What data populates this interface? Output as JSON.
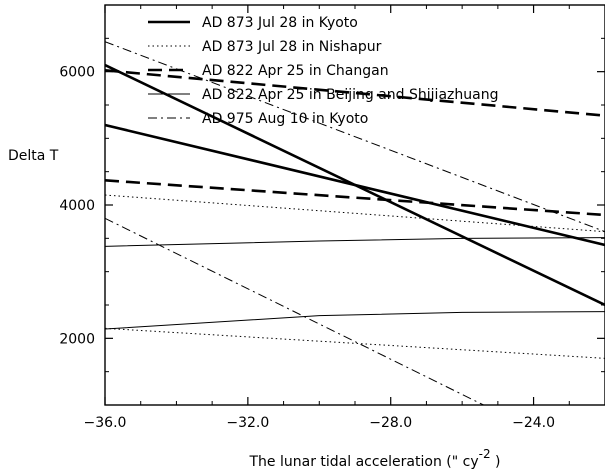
{
  "chart_data": {
    "type": "line",
    "title": "",
    "xlabel": "The lunar tidal acceleration (\" cy",
    "xlabel_superscript": "-2",
    "xlabel_suffix": " )",
    "ylabel": "Delta T",
    "xlim": [
      -36.0,
      -22.0
    ],
    "ylim": [
      1000,
      7000
    ],
    "x_ticks": [
      -36.0,
      -32.0,
      -28.0,
      -24.0
    ],
    "x_tick_labels": [
      "−36.0",
      "−32.0",
      "−28.0",
      "−24.0"
    ],
    "y_ticks": [
      2000,
      4000,
      6000
    ],
    "y_tick_labels": [
      "2000",
      "4000",
      "6000"
    ],
    "grid": false,
    "legend_position": "top",
    "series": [
      {
        "name": "AD 873 Jul 28 in Kyoto",
        "style": "solid-thick",
        "lines": [
          {
            "x": [
              -36.0,
              -22.0
            ],
            "y": [
              6100,
              2500
            ]
          },
          {
            "x": [
              -36.0,
              -22.0
            ],
            "y": [
              5200,
              3400
            ]
          }
        ]
      },
      {
        "name": "AD 873 Jul 28 in Nishapur",
        "style": "dotted",
        "lines": [
          {
            "x": [
              -36.0,
              -22.0
            ],
            "y": [
              4150,
              3600
            ]
          },
          {
            "x": [
              -36.0,
              -22.0
            ],
            "y": [
              2150,
              1700
            ]
          }
        ]
      },
      {
        "name": "AD 822 Apr 25 in Changan",
        "style": "dashed-thick",
        "lines": [
          {
            "x": [
              -36.0,
              -22.0
            ],
            "y": [
              6020,
              5340
            ]
          },
          {
            "x": [
              -36.0,
              -22.0
            ],
            "y": [
              4370,
              3850
            ]
          }
        ]
      },
      {
        "name": "AD 822 Apr 25 in Beijing and Shijiazhuang",
        "style": "solid-thin",
        "lines": [
          {
            "x": [
              -36.0,
              -30.0,
              -26.0,
              -22.0
            ],
            "y": [
              3380,
              3460,
              3500,
              3510
            ]
          },
          {
            "x": [
              -36.0,
              -30.0,
              -26.0,
              -22.0
            ],
            "y": [
              2140,
              2340,
              2390,
              2400
            ]
          }
        ]
      },
      {
        "name": "AD 975 Aug 10 in Kyoto",
        "style": "dashdot",
        "lines": [
          {
            "x": [
              -36.0,
              -22.0
            ],
            "y": [
              6450,
              3600
            ]
          },
          {
            "x": [
              -36.0,
              -25.4
            ],
            "y": [
              3800,
              1000
            ]
          }
        ]
      }
    ]
  }
}
